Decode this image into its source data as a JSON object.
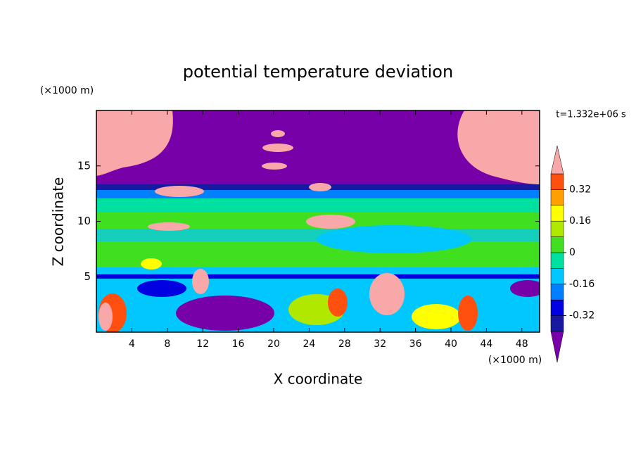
{
  "chart_data": {
    "type": "contour",
    "title": "potential temperature deviation",
    "xlabel": "X coordinate",
    "ylabel": "Z coordinate",
    "xunit": "(×1000 m)",
    "yunit": "(×1000 m)",
    "time_label": "t=1.332e+06 s",
    "xlim": [
      0,
      50
    ],
    "xticks": [
      4,
      8,
      12,
      16,
      20,
      24,
      28,
      32,
      36,
      40,
      44,
      48
    ],
    "ylim": [
      0,
      20
    ],
    "yticks": [
      5,
      10,
      15
    ],
    "colorbar": {
      "levels": [
        -0.4,
        -0.32,
        -0.24,
        -0.16,
        -0.08,
        0,
        0.08,
        0.16,
        0.24,
        0.32,
        0.4
      ],
      "colors": [
        "#1818a0",
        "#0000e0",
        "#0080ff",
        "#00c8ff",
        "#00e0a0",
        "#40e020",
        "#b0e800",
        "#ffff00",
        "#ffa000",
        "#ff5010"
      ],
      "under_color": "#7800a8",
      "over_color": "#f8a8a8",
      "ticks": [
        -0.32,
        -0.16,
        0,
        0.16,
        0.32
      ]
    }
  }
}
